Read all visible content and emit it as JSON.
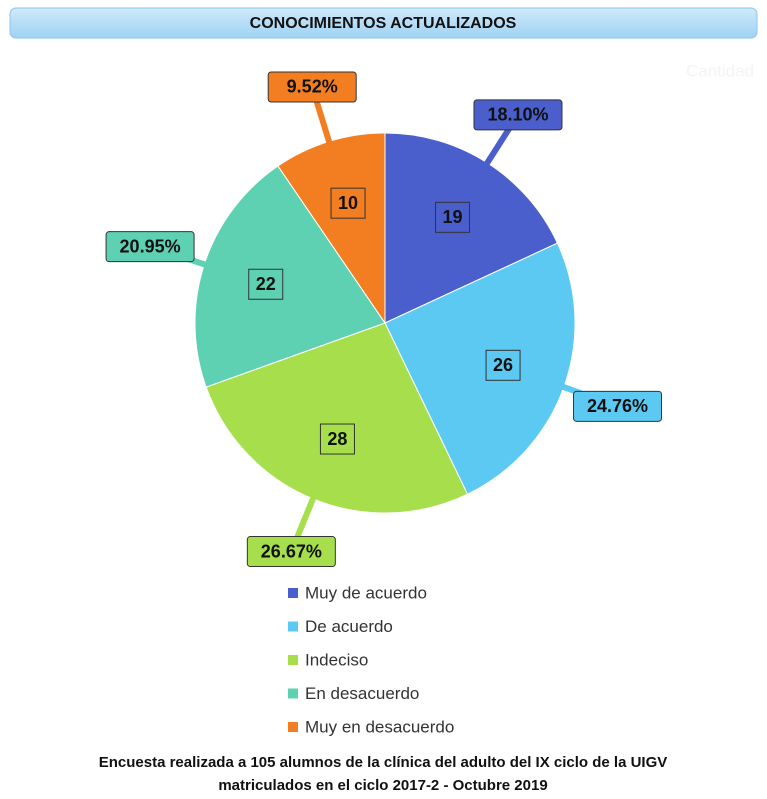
{
  "chart_data": {
    "type": "pie",
    "title": "CONOCIMIENTOS  ACTUALIZADOS",
    "series_name": "Cantidad",
    "categories": [
      "Muy de acuerdo",
      "De acuerdo",
      "Indeciso",
      "En desacuerdo",
      "Muy en desacuerdo"
    ],
    "values": [
      19,
      26,
      28,
      22,
      10
    ],
    "percent_labels": [
      "18.10%",
      "24.76%",
      "26.67%",
      "20.95%",
      "9.52%"
    ],
    "colors": [
      "#4a5fcb",
      "#5bc9f1",
      "#a6df4b",
      "#5dd1b1",
      "#f37e22"
    ],
    "legend": "bottom",
    "note": [
      "Encuesta realizada a 105 alumnos de la clínica del adulto del IX ciclo de la UIGV",
      "matriculados en el ciclo 2017-2 - Octubre 2019"
    ]
  }
}
